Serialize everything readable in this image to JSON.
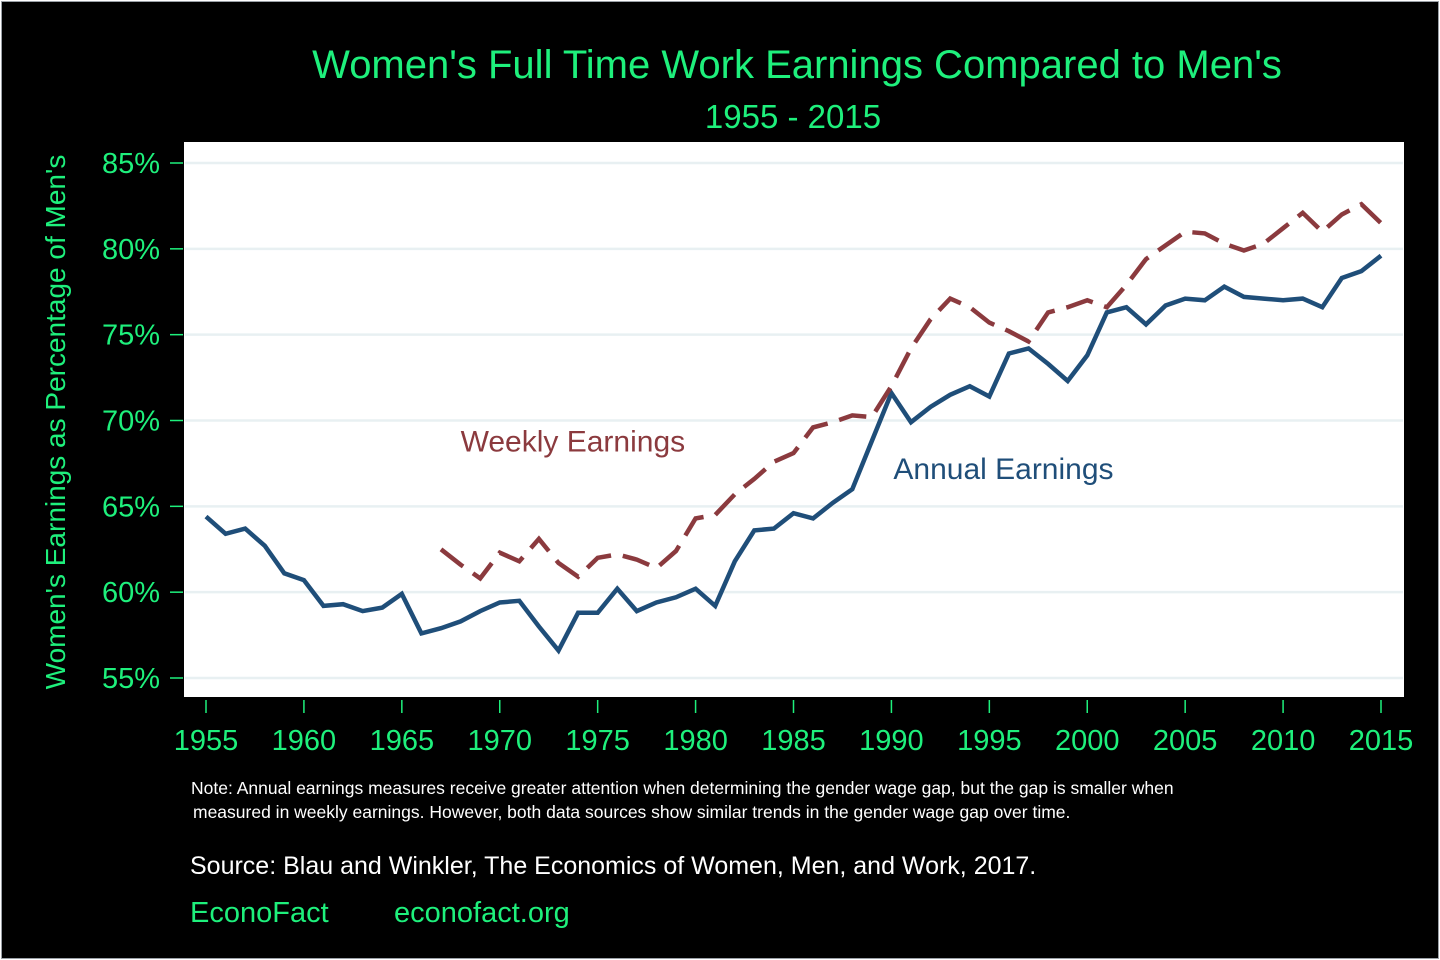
{
  "chart_data": {
    "type": "line",
    "title": "Women's Full Time Work Earnings Compared to Men's",
    "subtitle": "1955 - 2015",
    "xlabel": "",
    "ylabel": "Women's Earnings as Percentage of Men's",
    "xlim": [
      1955,
      2015
    ],
    "ylim": [
      55,
      85
    ],
    "x_ticks": [
      "1955",
      "1960",
      "1965",
      "1970",
      "1975",
      "1980",
      "1985",
      "1990",
      "1995",
      "2000",
      "2005",
      "2010",
      "2015"
    ],
    "y_ticks": [
      "55%",
      "60%",
      "65%",
      "70%",
      "75%",
      "80%",
      "85%"
    ],
    "grid": true,
    "legend_position": "inline labels",
    "series": [
      {
        "name": "Annual Earnings",
        "color": "#1f4e79",
        "style": "solid",
        "label_pos": {
          "year": 1990.1,
          "value": 66.6
        },
        "x": [
          1955,
          1956,
          1957,
          1958,
          1959,
          1960,
          1961,
          1962,
          1963,
          1964,
          1965,
          1966,
          1967,
          1968,
          1969,
          1970,
          1971,
          1972,
          1973,
          1974,
          1975,
          1976,
          1977,
          1978,
          1979,
          1980,
          1981,
          1982,
          1983,
          1984,
          1985,
          1986,
          1987,
          1988,
          1989,
          1990,
          1991,
          1992,
          1993,
          1994,
          1995,
          1996,
          1997,
          1998,
          1999,
          2000,
          2001,
          2002,
          2003,
          2004,
          2005,
          2006,
          2007,
          2008,
          2009,
          2010,
          2011,
          2012,
          2013,
          2014,
          2015
        ],
        "values": [
          64.4,
          63.4,
          63.7,
          62.7,
          61.1,
          60.7,
          59.2,
          59.3,
          58.9,
          59.1,
          59.9,
          57.6,
          57.9,
          58.3,
          58.9,
          59.4,
          59.5,
          58.0,
          56.6,
          58.8,
          58.8,
          60.2,
          58.9,
          59.4,
          59.7,
          60.2,
          59.2,
          61.8,
          63.6,
          63.7,
          64.6,
          64.3,
          65.2,
          66.0,
          68.8,
          71.6,
          69.9,
          70.8,
          71.5,
          72.0,
          71.4,
          73.9,
          74.2,
          73.3,
          72.3,
          73.8,
          76.3,
          76.6,
          75.6,
          76.7,
          77.1,
          77.0,
          77.8,
          77.2,
          77.1,
          77.0,
          77.1,
          76.6,
          78.3,
          78.7,
          79.6
        ]
      },
      {
        "name": "Weekly Earnings",
        "color": "#8b3a3e",
        "style": "dashed",
        "label_pos": {
          "year": 1968.0,
          "value": 68.2
        },
        "x": [
          1967,
          1968,
          1969,
          1970,
          1971,
          1972,
          1973,
          1974,
          1975,
          1976,
          1977,
          1978,
          1979,
          1980,
          1981,
          1982,
          1983,
          1984,
          1985,
          1986,
          1987,
          1988,
          1989,
          1990,
          1991,
          1992,
          1993,
          1994,
          1995,
          1996,
          1997,
          1998,
          1999,
          2000,
          2001,
          2002,
          2003,
          2004,
          2005,
          2006,
          2007,
          2008,
          2009,
          2010,
          2011,
          2012,
          2013,
          2014,
          2015
        ],
        "values": [
          62.5,
          61.6,
          60.8,
          62.3,
          61.8,
          63.1,
          61.7,
          60.9,
          62.0,
          62.2,
          61.9,
          61.4,
          62.4,
          64.3,
          64.5,
          65.7,
          66.6,
          67.6,
          68.1,
          69.6,
          69.9,
          70.3,
          70.2,
          72.0,
          74.2,
          75.9,
          77.1,
          76.6,
          75.7,
          75.2,
          74.6,
          76.3,
          76.6,
          77.0,
          76.6,
          77.9,
          79.4,
          80.2,
          81.0,
          80.9,
          80.3,
          79.9,
          80.3,
          81.2,
          82.1,
          81.0,
          82.0,
          82.6,
          81.5
        ]
      }
    ],
    "annotations": [
      "Note: Annual earnings measures receive greater attention when determining the gender wage gap, but the gap is smaller when",
      "measured in weekly earnings. However, both data sources show similar trends in the gender wage gap over time."
    ],
    "source": "Source: Blau and Winkler, The Economics of Women, Men, and Work, 2017."
  },
  "page": {
    "title": "Women's Full Time Work Earnings Compared to Men's",
    "subtitle": "1955 - 2015",
    "ylabel": "Women's Earnings as Percentage of Men's",
    "note_line1": "Note: Annual earnings measures receive greater attention when determining the gender wage gap, but the gap is smaller when",
    "note_line2": "measured in weekly earnings. However, both data sources show similar trends in the gender wage gap over time.",
    "source": "Source: Blau and Winkler, The Economics of Women, Men, and Work, 2017.",
    "brand_name": "EconoFact",
    "brand_url": "econofact.org"
  },
  "colors": {
    "background": "#000000",
    "plot_background": "#ffffff",
    "accent_green": "#1ef07c",
    "grid": "#e8f0f2",
    "annual": "#1f4e79",
    "weekly": "#8b3a3e"
  }
}
